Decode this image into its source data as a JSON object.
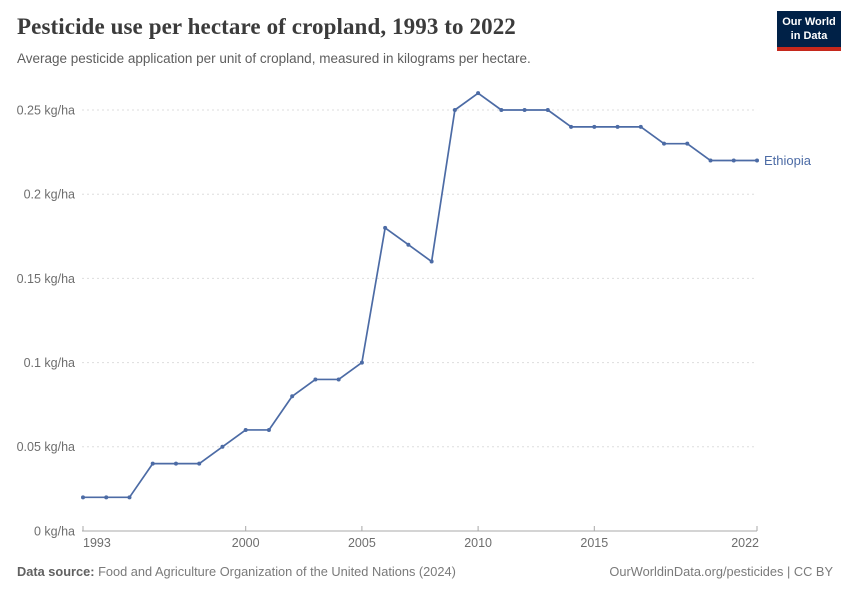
{
  "header": {
    "title": "Pesticide use per hectare of cropland, 1993 to 2022",
    "subtitle": "Average pesticide application per unit of cropland, measured in kilograms per hectare.",
    "logo": {
      "line1": "Our World",
      "line2": "in Data"
    }
  },
  "chart_data": {
    "type": "line",
    "title": "Pesticide use per hectare of cropland, 1993 to 2022",
    "unit": "kg/ha",
    "x": [
      1993,
      1994,
      1995,
      1996,
      1997,
      1998,
      1999,
      2000,
      2001,
      2002,
      2003,
      2004,
      2005,
      2006,
      2007,
      2008,
      2009,
      2010,
      2011,
      2012,
      2013,
      2014,
      2015,
      2016,
      2017,
      2018,
      2019,
      2020,
      2021,
      2022
    ],
    "series": [
      {
        "name": "Ethiopia",
        "values": [
          0.02,
          0.02,
          0.02,
          0.04,
          0.04,
          0.04,
          0.05,
          0.06,
          0.06,
          0.08,
          0.09,
          0.09,
          0.1,
          0.18,
          0.17,
          0.16,
          0.25,
          0.26,
          0.25,
          0.25,
          0.25,
          0.24,
          0.24,
          0.24,
          0.24,
          0.23,
          0.23,
          0.22,
          0.22,
          0.22
        ]
      }
    ],
    "xlim": [
      1993,
      2022
    ],
    "ylim": [
      0,
      0.26
    ],
    "x_ticks": [
      1993,
      2000,
      2005,
      2010,
      2015,
      2022
    ],
    "y_ticks": [
      {
        "value": 0,
        "label": "0 kg/ha"
      },
      {
        "value": 0.05,
        "label": "0.05 kg/ha"
      },
      {
        "value": 0.1,
        "label": "0.1 kg/ha"
      },
      {
        "value": 0.15,
        "label": "0.15 kg/ha"
      },
      {
        "value": 0.2,
        "label": "0.2 kg/ha"
      },
      {
        "value": 0.25,
        "label": "0.25 kg/ha"
      }
    ],
    "grid": "horizontal-dashed",
    "legend_position": "end-of-line-label"
  },
  "footer": {
    "datasource_label": "Data source:",
    "datasource_text": " Food and Agriculture Organization of the United Nations (2024)",
    "attribution": "OurWorldinData.org/pesticides | CC BY"
  },
  "colors": {
    "line": "#4c6ba5",
    "entity_label": "#4c6ba5",
    "grid": "#dddddd",
    "axis": "#a8a8a8",
    "tick_text": "#6e6e6e",
    "logo_bg": "#002147",
    "logo_red": "#c5281c"
  }
}
